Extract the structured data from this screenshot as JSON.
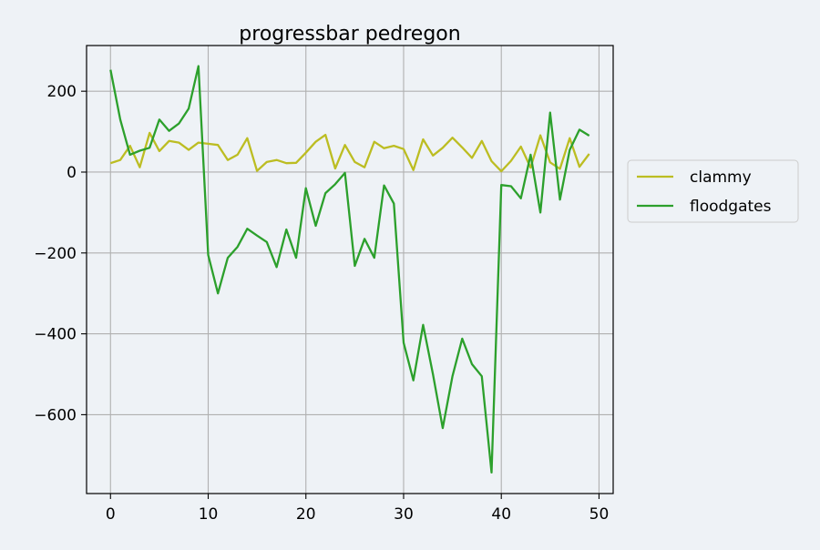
{
  "chart_data": {
    "type": "line",
    "title": "progressbar pedregon",
    "xlabel": "",
    "ylabel": "",
    "xlim": [
      -2.45,
      51.45
    ],
    "ylim": [
      -795,
      313
    ],
    "xticks": [
      0,
      10,
      20,
      30,
      40,
      50
    ],
    "yticks": [
      200,
      0,
      -200,
      -400,
      -600
    ],
    "ytick_labels": [
      "200",
      "0",
      "−200",
      "−400",
      "−600"
    ],
    "grid": true,
    "legend_position": "center-right-outside",
    "x": [
      0,
      1,
      2,
      3,
      4,
      5,
      6,
      7,
      8,
      9,
      10,
      11,
      12,
      13,
      14,
      15,
      16,
      17,
      18,
      19,
      20,
      21,
      22,
      23,
      24,
      25,
      26,
      27,
      28,
      29,
      30,
      31,
      32,
      33,
      34,
      35,
      36,
      37,
      38,
      39,
      40,
      41,
      42,
      43,
      44,
      45,
      46,
      47,
      48,
      49
    ],
    "series": [
      {
        "name": "clammy",
        "color": "#bcbd22",
        "values": [
          22,
          30,
          65,
          12,
          97,
          52,
          77,
          73,
          55,
          73,
          70,
          67,
          30,
          43,
          84,
          3,
          25,
          30,
          22,
          23,
          48,
          75,
          92,
          9,
          67,
          25,
          12,
          75,
          59,
          65,
          57,
          5,
          81,
          41,
          60,
          85,
          61,
          35,
          77,
          27,
          2,
          28,
          63,
          11,
          91,
          24,
          8,
          84,
          13,
          45
        ]
      },
      {
        "name": "floodgates",
        "color": "#2ca02c",
        "values": [
          253,
          130,
          43,
          53,
          60,
          130,
          102,
          120,
          157,
          262,
          -205,
          -300,
          -212,
          -185,
          -140,
          -157,
          -173,
          -235,
          -142,
          -212,
          -40,
          -133,
          -52,
          -30,
          -2,
          -232,
          -165,
          -212,
          -33,
          -78,
          -422,
          -515,
          -378,
          -500,
          -633,
          -505,
          -412,
          -475,
          -505,
          -743,
          -32,
          -35,
          -65,
          43,
          -100,
          147,
          -68,
          55,
          105,
          90
        ]
      }
    ]
  }
}
